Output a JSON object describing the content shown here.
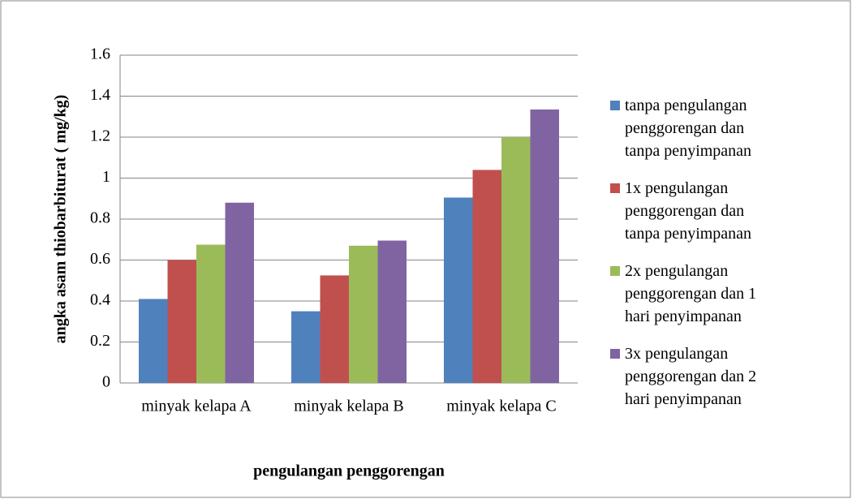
{
  "chart_data": {
    "type": "bar",
    "y_label": "angka asam thiobarbiturat ( mg/kg)",
    "x_label": "pengulangan penggorengan",
    "categories": [
      "minyak kelapa A",
      "minyak kelapa B",
      "minyak kelapa C"
    ],
    "series": [
      {
        "name": "tanpa pengulangan penggorengan dan tanpa penyimpanan",
        "color": "#4f81bd",
        "values": [
          0.41,
          0.35,
          0.905
        ]
      },
      {
        "name": "1x pengulangan penggorengan dan tanpa penyimpanan",
        "color": "#c0504d",
        "values": [
          0.6,
          0.525,
          1.04
        ]
      },
      {
        "name": "2x pengulangan penggorengan dan 1 hari penyimpanan",
        "color": "#9bbb59",
        "values": [
          0.675,
          0.67,
          1.2
        ]
      },
      {
        "name": "3x pengulangan penggorengan dan 2 hari penyimpanan",
        "color": "#8064a2",
        "values": [
          0.88,
          0.695,
          1.335
        ]
      }
    ],
    "ylim": [
      0,
      1.6
    ],
    "yticks": [
      0,
      0.2,
      0.4,
      0.6,
      0.8,
      1,
      1.2,
      1.4,
      1.6
    ],
    "grid": true,
    "legend": "right"
  }
}
